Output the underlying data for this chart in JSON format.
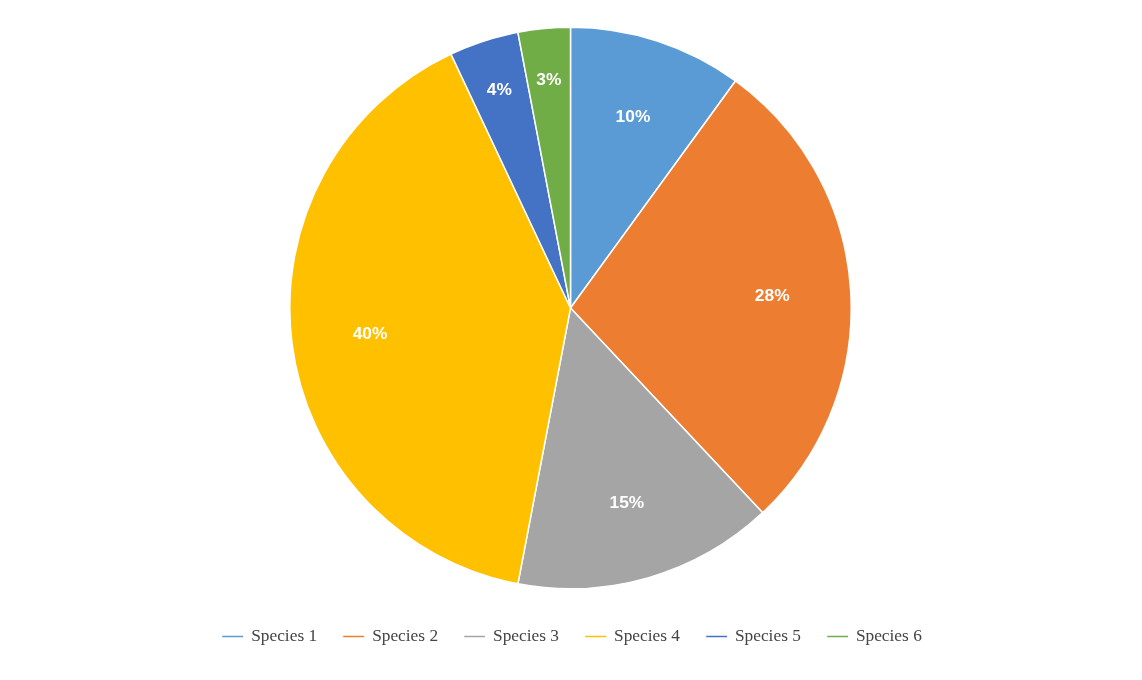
{
  "chart_data": {
    "type": "pie",
    "categories": [
      "Species 1",
      "Species 2",
      "Species 3",
      "Species 4",
      "Species 5",
      "Species 6"
    ],
    "values": [
      10,
      28,
      15,
      40,
      4,
      3
    ],
    "colors": [
      "#5b9bd5",
      "#ed7d31",
      "#a5a5a5",
      "#ffc000",
      "#4472c4",
      "#70ad47"
    ],
    "value_labels": [
      "10%",
      "28%",
      "15%",
      "40%",
      "4%",
      "3%"
    ],
    "legend": "bottom"
  }
}
